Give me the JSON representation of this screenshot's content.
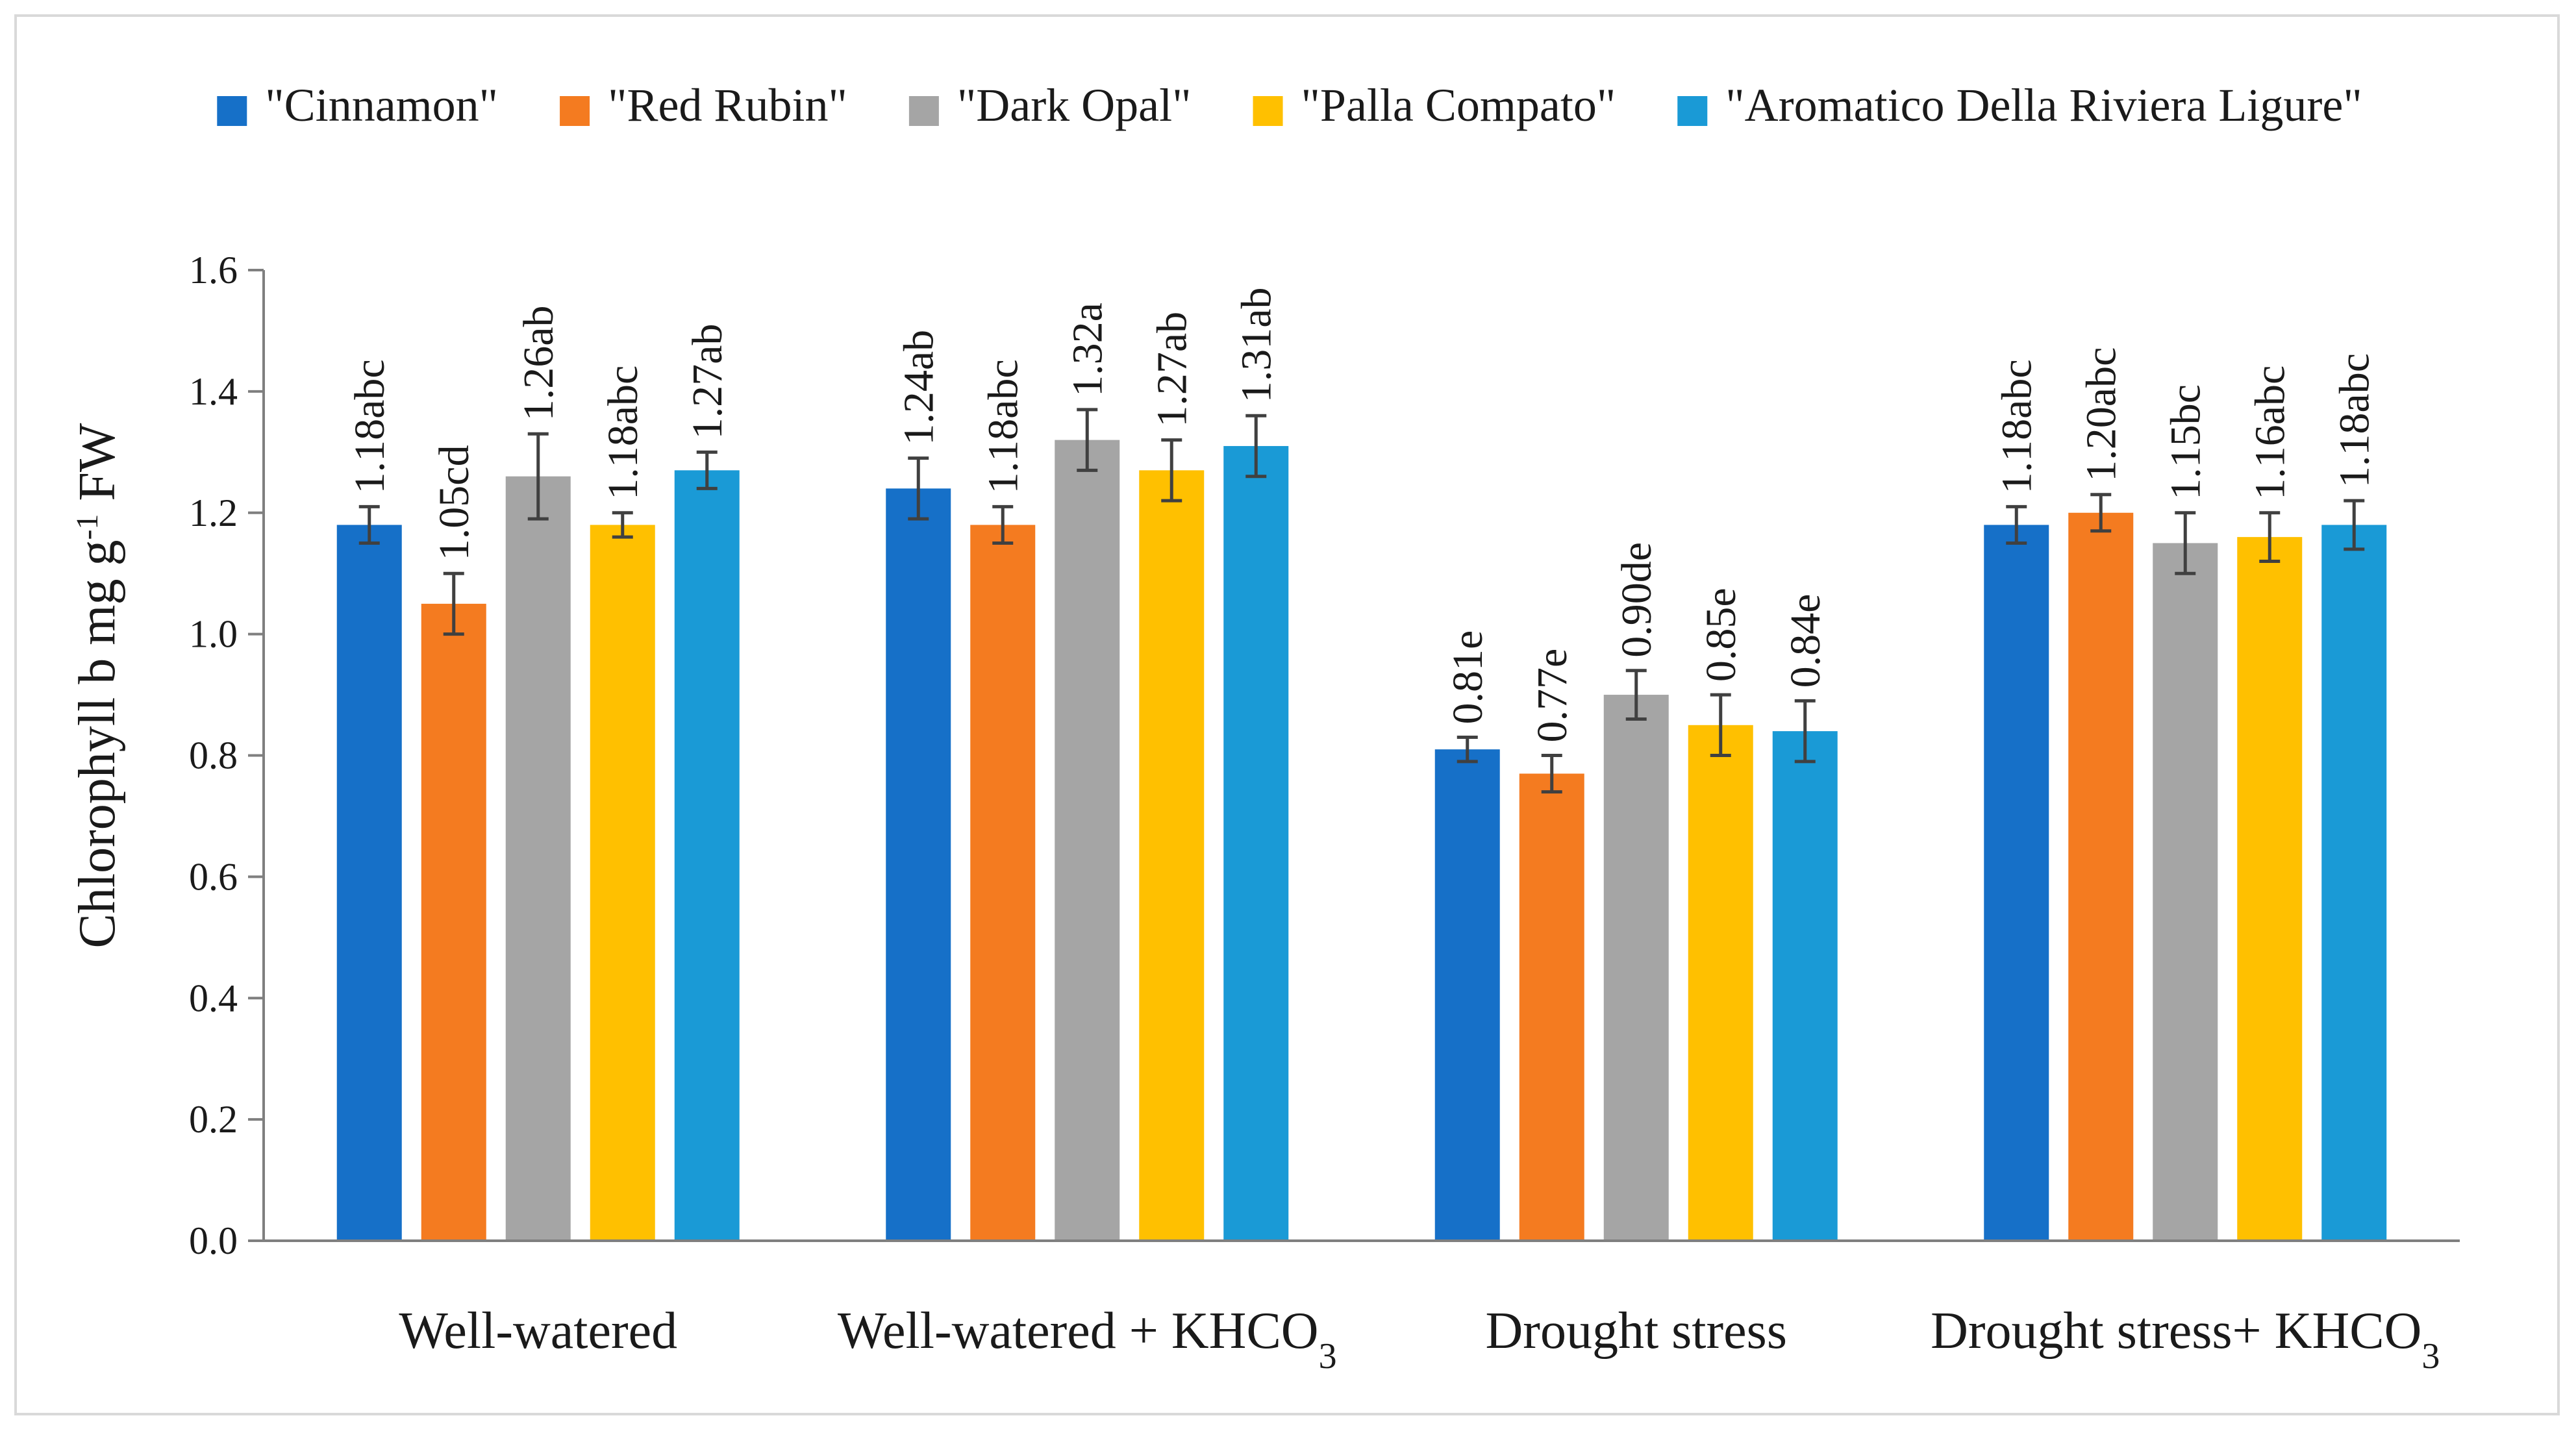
{
  "chart_data": {
    "type": "bar",
    "title": "",
    "xlabel": "",
    "ylabel": {
      "main": "Chlorophyll b mg g",
      "superscript": "-1",
      "suffix": " FW"
    },
    "ylim": [
      0,
      1.6
    ],
    "yticks": [
      "0.0",
      "0.2",
      "0.4",
      "0.6",
      "0.8",
      "1.0",
      "1.2",
      "1.4",
      "1.6"
    ],
    "grid": false,
    "legend_position": "top",
    "categories": [
      {
        "text": "Well-watered",
        "subscript": ""
      },
      {
        "text": "Well-watered + KHCO",
        "subscript": "3"
      },
      {
        "text": "Drought stress",
        "subscript": ""
      },
      {
        "text": "Drought stress+ KHCO",
        "subscript": "3"
      }
    ],
    "series": [
      {
        "name": "\"Cinnamon\"",
        "color": "#1670c8",
        "values": [
          1.18,
          1.24,
          0.81,
          1.18
        ],
        "errors": [
          0.03,
          0.05,
          0.02,
          0.03
        ],
        "labels": [
          "1.18abc",
          "1.24ab",
          "0.81e",
          "1.18abc"
        ]
      },
      {
        "name": "\"Red Rubin\"",
        "color": "#f47b20",
        "values": [
          1.05,
          1.18,
          0.77,
          1.2
        ],
        "errors": [
          0.05,
          0.03,
          0.03,
          0.03
        ],
        "labels": [
          "1.05cd",
          "1.18abc",
          "0.77e",
          "1.20abc"
        ]
      },
      {
        "name": "\"Dark Opal\"",
        "color": "#a5a5a5",
        "values": [
          1.26,
          1.32,
          0.9,
          1.15
        ],
        "errors": [
          0.07,
          0.05,
          0.04,
          0.05
        ],
        "labels": [
          "1.26ab",
          "1.32a",
          "0.90de",
          "1.15bc"
        ]
      },
      {
        "name": "\"Palla Compato\"",
        "color": "#ffc000",
        "values": [
          1.18,
          1.27,
          0.85,
          1.16
        ],
        "errors": [
          0.02,
          0.05,
          0.05,
          0.04
        ],
        "labels": [
          "1.18abc",
          "1.27ab",
          "0.85e",
          "1.16abc"
        ]
      },
      {
        "name": "\"Aromatico Della Riviera Ligure\"",
        "color": "#1a9ad6",
        "values": [
          1.27,
          1.31,
          0.84,
          1.18
        ],
        "errors": [
          0.03,
          0.05,
          0.05,
          0.04
        ],
        "labels": [
          "1.27ab",
          "1.31ab",
          "0.84e",
          "1.18abc"
        ]
      }
    ],
    "colors": {
      "axis": "#7f7f7f",
      "error_bar": "#404040",
      "frame": "#d9d9d9"
    }
  }
}
